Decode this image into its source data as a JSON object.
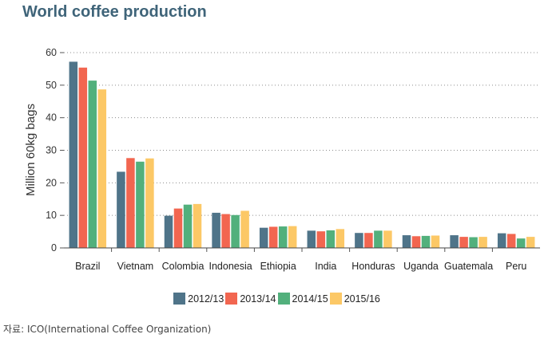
{
  "title": "World coffee production",
  "source": "자료: ICO(International Coffee Organization)",
  "chart_data": {
    "type": "bar",
    "title": "World coffee production",
    "xlabel": "",
    "ylabel": "Million 60kg bags",
    "ylim": [
      0,
      60
    ],
    "yticks": [
      0,
      10,
      20,
      30,
      40,
      50,
      60
    ],
    "grid": "horizontal dotted",
    "legend_position": "bottom",
    "categories": [
      "Brazil",
      "Vietnam",
      "Colombia",
      "Indonesia",
      "Ethiopia",
      "India",
      "Honduras",
      "Uganda",
      "Guatemala",
      "Peru"
    ],
    "series": [
      {
        "name": "2012/13",
        "color": "#4f7489",
        "values": [
          57.2,
          23.4,
          9.9,
          10.8,
          6.2,
          5.3,
          4.6,
          3.9,
          3.9,
          4.5
        ]
      },
      {
        "name": "2013/14",
        "color": "#f26650",
        "values": [
          55.4,
          27.6,
          12.1,
          10.4,
          6.5,
          5.1,
          4.6,
          3.6,
          3.4,
          4.3
        ]
      },
      {
        "name": "2014/15",
        "color": "#52b07c",
        "values": [
          51.4,
          26.5,
          13.3,
          10.1,
          6.6,
          5.4,
          5.3,
          3.7,
          3.3,
          2.9
        ]
      },
      {
        "name": "2015/16",
        "color": "#fcc866",
        "values": [
          48.7,
          27.5,
          13.5,
          11.4,
          6.7,
          5.8,
          5.3,
          3.8,
          3.4,
          3.4
        ]
      }
    ]
  }
}
